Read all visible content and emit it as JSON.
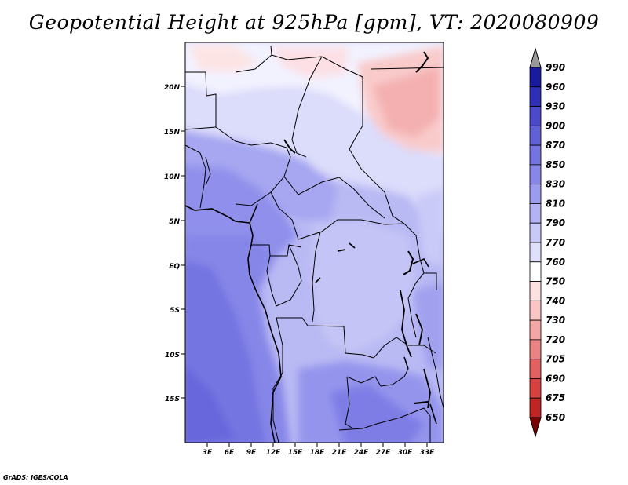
{
  "title": "Geopotential Height at 925hPa [gpm], VT: 2020080909",
  "credit": "GrADS: IGES/COLA",
  "map": {
    "lat_labels": [
      "20N",
      "15N",
      "10N",
      "5N",
      "EQ",
      "5S",
      "10S",
      "15S"
    ],
    "lon_labels": [
      "3E",
      "6E",
      "9E",
      "12E",
      "15E",
      "18E",
      "21E",
      "24E",
      "27E",
      "30E",
      "33E"
    ]
  },
  "colorbar": {
    "levels": [
      "990",
      "960",
      "930",
      "900",
      "870",
      "850",
      "830",
      "810",
      "790",
      "770",
      "760",
      "750",
      "740",
      "730",
      "720",
      "705",
      "690",
      "675",
      "650"
    ],
    "colors": [
      "#7a0000",
      "#a01010",
      "#c02525",
      "#d84040",
      "#e26060",
      "#eb8383",
      "#f3a6a6",
      "#f9c5c5",
      "#fde0e0",
      "#ffffff",
      "#e0e0fc",
      "#c9c9f8",
      "#b2b2f4",
      "#9b9bef",
      "#8787e8",
      "#7474e0",
      "#6161d6",
      "#4a4acb",
      "#2e2eb6",
      "#1a1aa0",
      "#000080"
    ]
  }
}
